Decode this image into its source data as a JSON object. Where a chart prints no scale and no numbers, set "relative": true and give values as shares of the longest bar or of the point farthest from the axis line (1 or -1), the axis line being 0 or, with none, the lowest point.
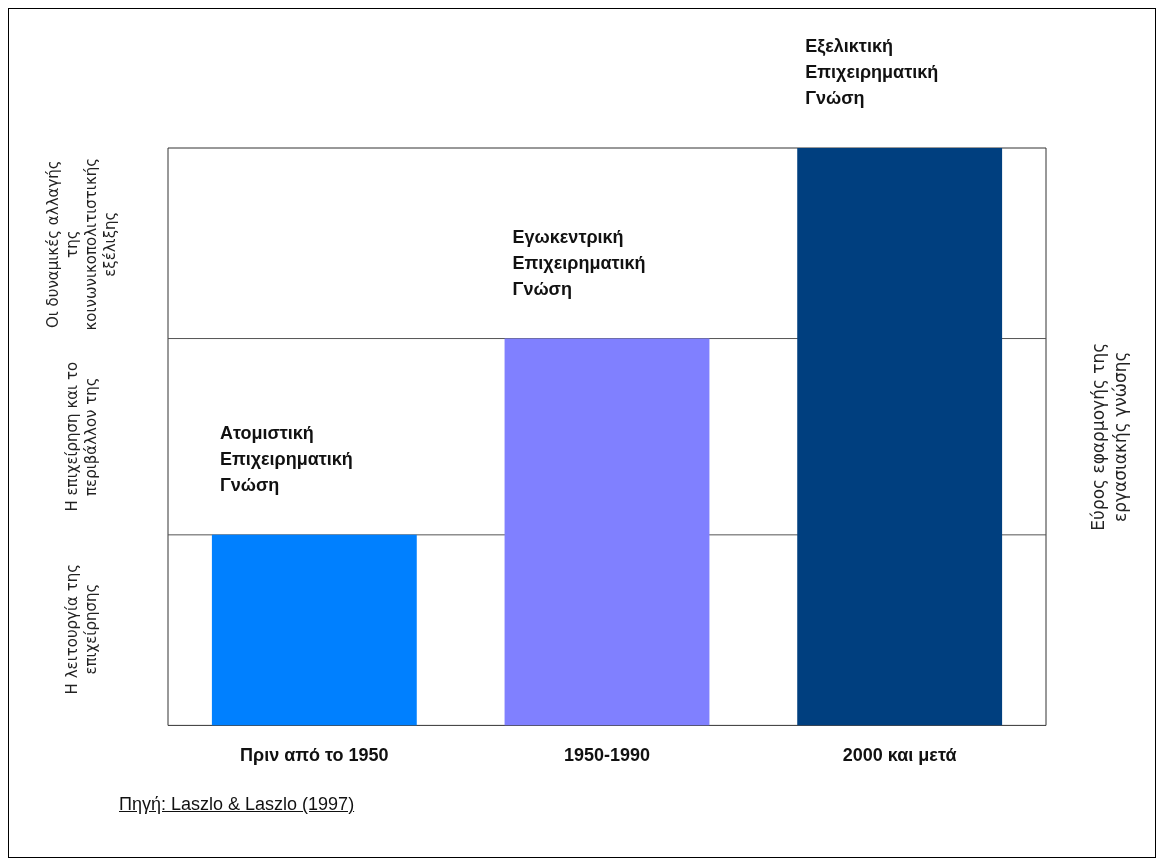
{
  "chart_data": {
    "type": "bar",
    "relative": true,
    "categories": [
      "Πριν από το 1950",
      "1950-1990",
      "2000 και μετά"
    ],
    "values": [
      0.33,
      0.67,
      1
    ],
    "colors": [
      "#0080ff",
      "#8080ff",
      "#003f7f"
    ],
    "y2label": "Εύρος εφαρμογής της εργασιακής γνώσης",
    "ref_lines": [
      {
        "axis": "y",
        "value": 0.33
      },
      {
        "axis": "y",
        "value": 0.67
      }
    ],
    "annotations": [
      "Η λειτουργία της επιχείρησης",
      "Η επιχείρηση και το περιβάλλον της",
      "Οι δυναμικές αλλαγής της κοινωνικοπολιτιστικής εξέλιξης",
      {
        "text": "Ατομιστική Επιχειρηματική Γνώση",
        "x": "Πριν από το 1950",
        "y": 0.33
      },
      {
        "text": "Εγωκεντρική Επιχειρηματική Γνώση",
        "x": "1950-1990",
        "y": 0.67
      },
      {
        "text": "Εξελικτική Επιχειρηματική Γνώση",
        "x": "2000 και μετά",
        "y": 1
      },
      "Πηγή: Laszlo & Laszlo (1997)"
    ],
    "legend": false
  }
}
